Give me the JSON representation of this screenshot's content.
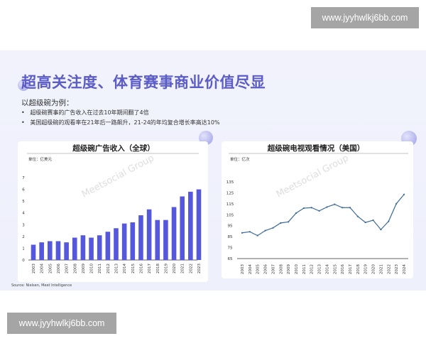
{
  "watermark": "www.jyyhwlkj6bb.com",
  "title": "超高关注度、体育赛事商业价值尽显",
  "intro": "以超级碗为例：",
  "bullets": [
    "超级碗赛事的广告收入在过去10年期间翻了4倍",
    "美国超级碗的观看率在21年后一路飙升，21-24的年均复合增长率高达10%"
  ],
  "source": "Source: Nielsen, Meet Intelligence",
  "chart_watermark": "Meetsocial Group",
  "colors": {
    "accent": "#5b5cc8",
    "bar": "#5558dc",
    "line": "#3d6a95"
  },
  "chart_data": [
    {
      "type": "bar",
      "title": "超级碗广告收入（全球）",
      "unit": "单位：亿美元",
      "categories": [
        "2003",
        "2004",
        "2005",
        "2006",
        "2007",
        "2008",
        "2009",
        "2010",
        "2011",
        "2012",
        "2013",
        "2014",
        "2015",
        "2016",
        "2017",
        "2018",
        "2019",
        "2020",
        "2021",
        "2022",
        "2023"
      ],
      "values": [
        1.3,
        1.5,
        1.6,
        1.6,
        1.5,
        1.9,
        2.1,
        1.9,
        2.1,
        2.4,
        2.7,
        3.1,
        3.2,
        3.8,
        4.3,
        3.4,
        3.4,
        4.5,
        5.4,
        5.8,
        6.0
      ],
      "ylim": [
        0,
        7
      ],
      "yticks": [
        "0",
        "1",
        "2",
        "3",
        "4",
        "5",
        "6",
        "7"
      ]
    },
    {
      "type": "line",
      "title": "超级碗电视观看情况（美国）",
      "unit": "单位：亿次",
      "categories": [
        "2003",
        "2004",
        "2005",
        "2006",
        "2007",
        "2008",
        "2009",
        "2010",
        "2011",
        "2012",
        "2013",
        "2014",
        "2015",
        "2016",
        "2017",
        "2018",
        "2019",
        "2020",
        "2021",
        "2022",
        "2023",
        "2024"
      ],
      "values": [
        88.5,
        89.5,
        86,
        90.5,
        93,
        97.5,
        98.5,
        106.5,
        111,
        111.5,
        108.5,
        112,
        114.5,
        111.5,
        111.5,
        103.5,
        98,
        100,
        91.5,
        99,
        115,
        123.5
      ],
      "ylim": [
        65,
        135
      ],
      "yticks": [
        "65",
        "75",
        "85",
        "95",
        "105",
        "115",
        "125",
        "135"
      ]
    }
  ]
}
